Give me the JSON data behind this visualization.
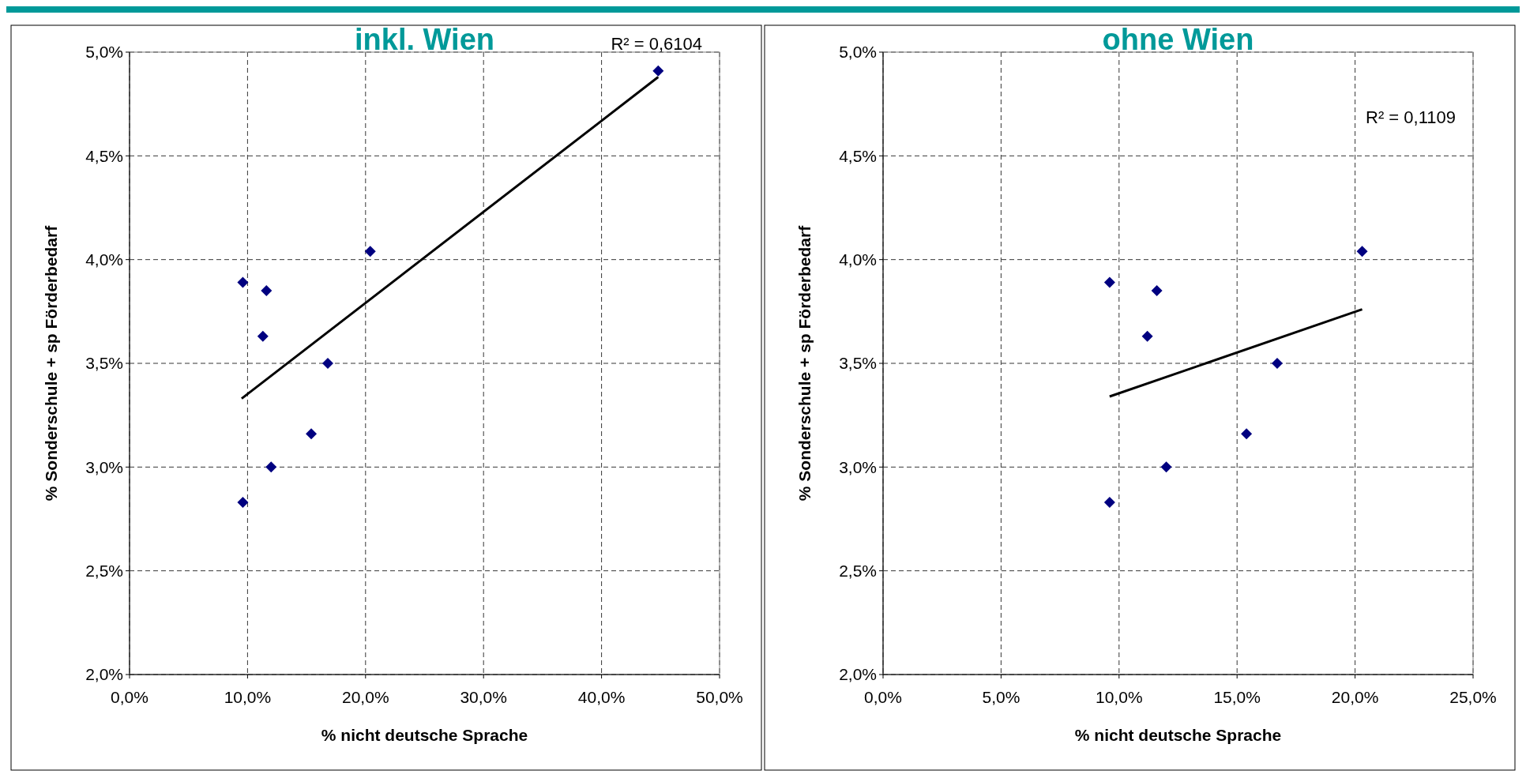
{
  "chart_data": [
    {
      "type": "scatter",
      "title": "inkl. Wien",
      "xlabel": "% nicht deutsche Sprache",
      "ylabel": "% Sonderschule + sp Förderbedarf",
      "annotations": [
        "R² = 0,6104"
      ],
      "grid": true,
      "xlim": [
        0,
        50
      ],
      "xticks": [
        {
          "value": 0,
          "label": "0,0%"
        },
        {
          "value": 10,
          "label": "10,0%"
        },
        {
          "value": 20,
          "label": "20,0%"
        },
        {
          "value": 30,
          "label": "30,0%"
        },
        {
          "value": 40,
          "label": "40,0%"
        },
        {
          "value": 50,
          "label": "50,0%"
        }
      ],
      "ylim": [
        2,
        5
      ],
      "yticks": [
        {
          "value": 2,
          "label": "2,0%"
        },
        {
          "value": 2.5,
          "label": "2,5%"
        },
        {
          "value": 3,
          "label": "3,0%"
        },
        {
          "value": 3.5,
          "label": "3,5%"
        },
        {
          "value": 4,
          "label": "4,0%"
        },
        {
          "value": 4.5,
          "label": "4,5%"
        },
        {
          "value": 5,
          "label": "5,0%"
        }
      ],
      "series": [
        {
          "color": "#000080",
          "marker": "diamond",
          "x": [
            9.6,
            11.6,
            11.3,
            16.8,
            15.4,
            12.0,
            9.6,
            20.4,
            44.8
          ],
          "values": [
            3.89,
            3.85,
            3.63,
            3.5,
            3.16,
            3.0,
            2.83,
            4.04,
            4.91
          ]
        },
        {
          "type": "line",
          "color": "#000000",
          "x": [
            9.5,
            44.8
          ],
          "values": [
            3.33,
            4.88
          ]
        }
      ]
    },
    {
      "type": "scatter",
      "title": "ohne Wien",
      "xlabel": "% nicht deutsche Sprache",
      "ylabel": "% Sonderschule + sp Förderbedarf",
      "annotations": [
        "R² = 0,1109"
      ],
      "grid": true,
      "xlim": [
        0,
        25
      ],
      "xticks": [
        {
          "value": 0,
          "label": "0,0%"
        },
        {
          "value": 5,
          "label": "5,0%"
        },
        {
          "value": 10,
          "label": "10,0%"
        },
        {
          "value": 15,
          "label": "15,0%"
        },
        {
          "value": 20,
          "label": "20,0%"
        },
        {
          "value": 25,
          "label": "25,0%"
        }
      ],
      "ylim": [
        2,
        5
      ],
      "yticks": [
        {
          "value": 2,
          "label": "2,0%"
        },
        {
          "value": 2.5,
          "label": "2,5%"
        },
        {
          "value": 3,
          "label": "3,0%"
        },
        {
          "value": 3.5,
          "label": "3,5%"
        },
        {
          "value": 4,
          "label": "4,0%"
        },
        {
          "value": 4.5,
          "label": "4,5%"
        },
        {
          "value": 5,
          "label": "5,0%"
        }
      ],
      "series": [
        {
          "color": "#000080",
          "marker": "diamond",
          "x": [
            9.6,
            11.6,
            11.2,
            16.7,
            15.4,
            12.0,
            9.6,
            20.3
          ],
          "values": [
            3.89,
            3.85,
            3.63,
            3.5,
            3.16,
            3.0,
            2.83,
            4.04
          ]
        },
        {
          "type": "line",
          "color": "#000000",
          "x": [
            9.6,
            20.3
          ],
          "values": [
            3.34,
            3.76
          ]
        }
      ]
    }
  ]
}
